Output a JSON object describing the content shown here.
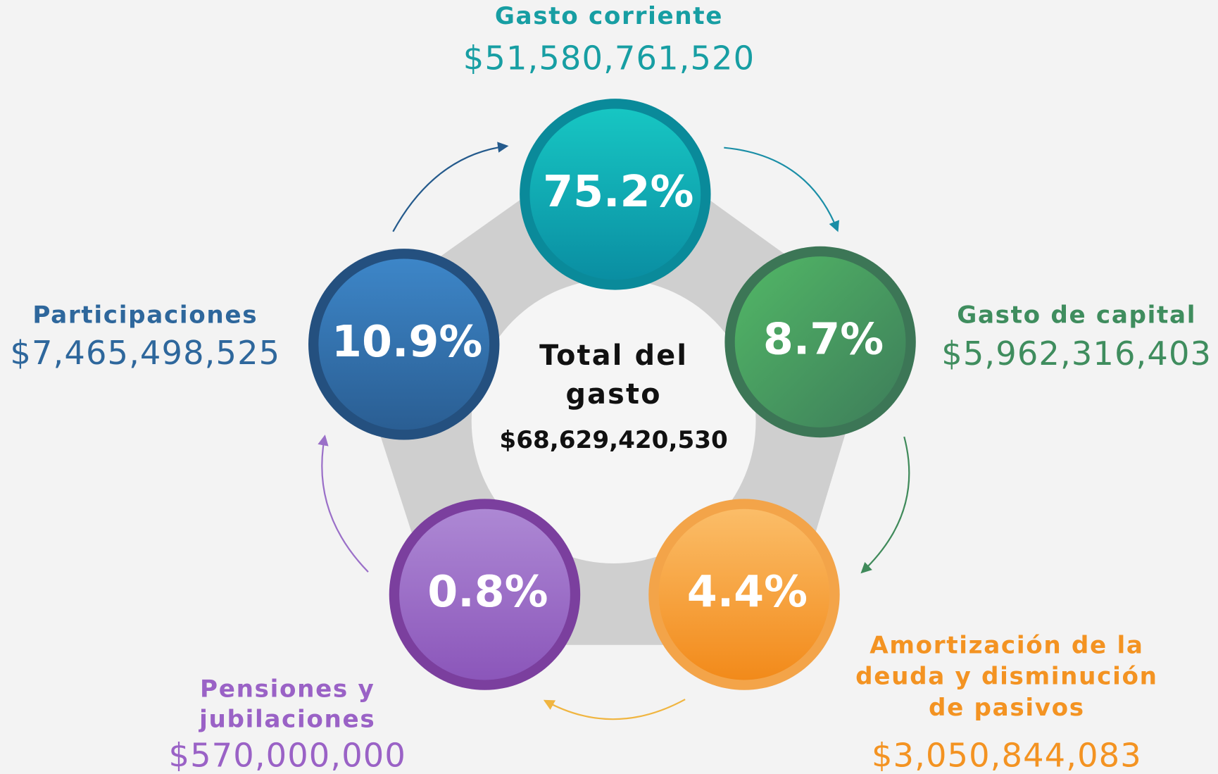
{
  "center": {
    "title_lines": [
      "Total del",
      "gasto"
    ],
    "total": "$68,629,420,530"
  },
  "items": [
    {
      "label_lines": [
        "Gasto corriente"
      ],
      "amount": "$51,580,761,520",
      "percent": "75.2%"
    },
    {
      "label_lines": [
        "Gasto de capital"
      ],
      "amount": "$5,962,316,403",
      "percent": "8.7%"
    },
    {
      "label_lines": [
        "Amortización de la",
        "deuda y disminución",
        "de pasivos"
      ],
      "amount": "$3,050,844,083",
      "percent": "4.4%"
    },
    {
      "label_lines": [
        "Pensiones y",
        "jubilaciones"
      ],
      "amount": "$570,000,000",
      "percent": "0.8%"
    },
    {
      "label_lines": [
        "Participaciones"
      ],
      "amount": "$7,465,498,525",
      "percent": "10.9%"
    }
  ]
}
